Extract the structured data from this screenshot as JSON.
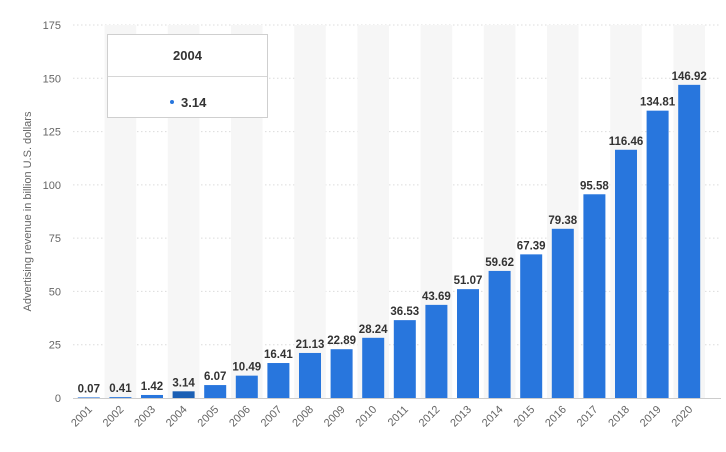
{
  "chart_data": {
    "type": "bar",
    "categories": [
      "2001",
      "2002",
      "2003",
      "2004",
      "2005",
      "2006",
      "2007",
      "2008",
      "2009",
      "2010",
      "2011",
      "2012",
      "2013",
      "2014",
      "2015",
      "2016",
      "2017",
      "2018",
      "2019",
      "2020"
    ],
    "values": [
      0.07,
      0.41,
      1.42,
      3.14,
      6.07,
      10.49,
      16.41,
      21.13,
      22.89,
      28.24,
      36.53,
      43.69,
      51.07,
      59.62,
      67.39,
      79.38,
      95.58,
      116.46,
      134.81,
      146.92
    ],
    "data_labels": [
      "0.07",
      "0.41",
      "1.42",
      "3.14",
      "6.07",
      "10.49",
      "16.41",
      "21.13",
      "22.89",
      "28.24",
      "36.53",
      "43.69",
      "51.07",
      "59.62",
      "67.39",
      "79.38",
      "95.58",
      "116.46",
      "134.81",
      "146.92"
    ],
    "ylabel": "Advertising revenue in billion U.S. dollars",
    "xlabel": "",
    "ylim": [
      0,
      175
    ],
    "yticks": [
      0,
      25,
      50,
      75,
      100,
      125,
      150,
      175
    ],
    "grid": "horizontal-dashed",
    "bar_color": "#2876dd",
    "highlight_color": "#1a5fb4"
  },
  "tooltip": {
    "year": "2004",
    "value": "3.14",
    "dot_color": "#2876dd"
  }
}
